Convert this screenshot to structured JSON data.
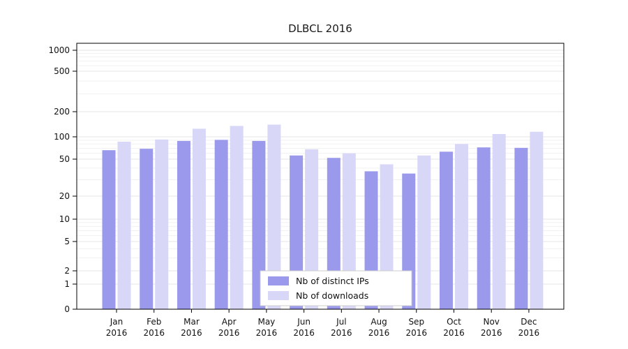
{
  "figure": {
    "title": "DLBCL 2016"
  },
  "chart_data": {
    "type": "bar",
    "title": "DLBCL 2016",
    "yscale": "symlog",
    "grid": true,
    "yticks": [
      0,
      1,
      2,
      5,
      10,
      20,
      50,
      100,
      200,
      500,
      1000
    ],
    "ylim": [
      0,
      1400
    ],
    "legend_position": "lower center",
    "categories": [
      "Jan",
      "Feb",
      "Mar",
      "Apr",
      "May",
      "Jun",
      "Jul",
      "Aug",
      "Sep",
      "Oct",
      "Nov",
      "Dec"
    ],
    "category_year": "2016",
    "series": [
      {
        "name": "Nb of distinct IPs",
        "color": "#9a99ec",
        "values": [
          66,
          69,
          88,
          91,
          88,
          56,
          52,
          37,
          35,
          63,
          72,
          71
        ]
      },
      {
        "name": "Nb of downloads",
        "color": "#d8d7f8",
        "values": [
          86,
          92,
          125,
          135,
          140,
          68,
          60,
          44,
          56,
          80,
          108,
          115
        ]
      }
    ]
  }
}
